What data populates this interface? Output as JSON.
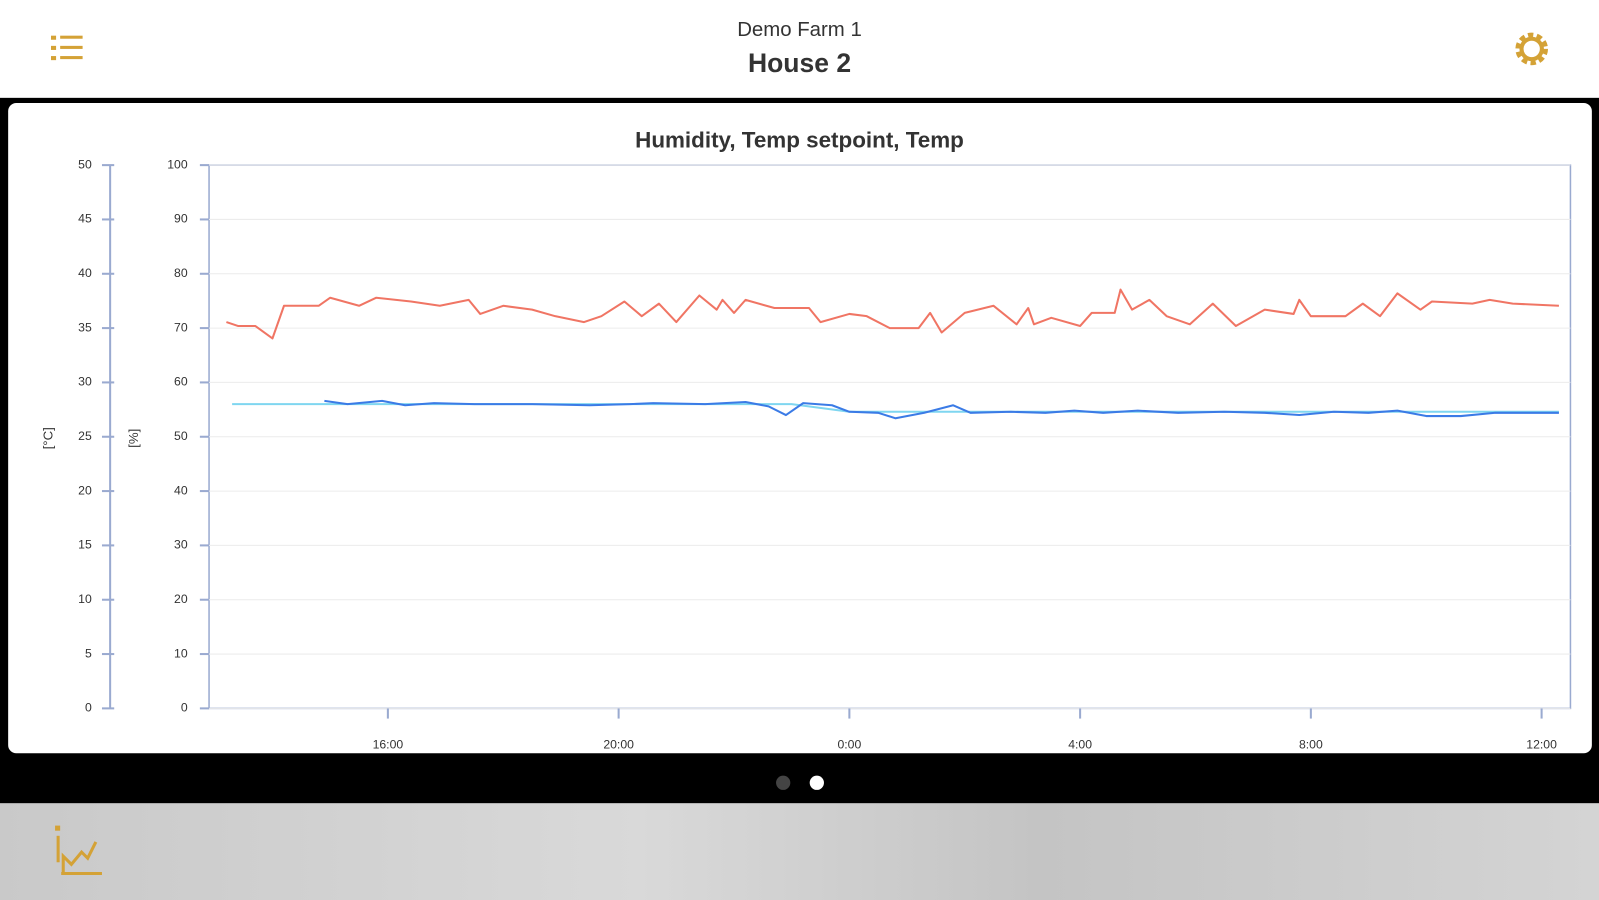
{
  "header": {
    "subtitle": "Demo Farm 1",
    "title": "House 2"
  },
  "chart_data": {
    "type": "line",
    "title": "Humidity, Temp setpoint, Temp",
    "ylabel": "[°C]",
    "y2label": "[%]",
    "xlim": [
      12.9,
      36.5
    ],
    "xticks": [
      {
        "value": 16,
        "label": "16:00"
      },
      {
        "value": 20,
        "label": "20:00"
      },
      {
        "value": 24,
        "label": "0:00"
      },
      {
        "value": 28,
        "label": "4:00"
      },
      {
        "value": 32,
        "label": "8:00"
      },
      {
        "value": 36,
        "label": "12:00"
      }
    ],
    "ylim": [
      0,
      50
    ],
    "yticks": [
      0,
      5,
      10,
      15,
      20,
      25,
      30,
      35,
      40,
      45,
      50
    ],
    "y2lim": [
      0,
      100
    ],
    "y2ticks": [
      0,
      10,
      20,
      30,
      40,
      50,
      60,
      70,
      80,
      90,
      100
    ],
    "grid": true,
    "series": [
      {
        "name": "Humidity",
        "color": "#f07564",
        "axis": "y2",
        "x": [
          13.2,
          13.4,
          13.7,
          14.0,
          14.2,
          14.8,
          15.0,
          15.5,
          15.8,
          16.4,
          16.9,
          17.4,
          17.6,
          18.0,
          18.5,
          18.9,
          19.4,
          19.7,
          20.1,
          20.4,
          20.7,
          21.0,
          21.4,
          21.7,
          21.8,
          22.0,
          22.2,
          22.7,
          23.3,
          23.5,
          24.0,
          24.3,
          24.7,
          25.2,
          25.4,
          25.6,
          26.0,
          26.5,
          26.9,
          27.1,
          27.2,
          27.5,
          28.0,
          28.2,
          28.6,
          28.7,
          28.9,
          29.2,
          29.5,
          29.9,
          30.3,
          30.7,
          31.2,
          31.7,
          31.8,
          32.0,
          32.6,
          32.9,
          33.2,
          33.5,
          33.9,
          34.1,
          34.8,
          35.1,
          35.5,
          36.3
        ],
        "values": [
          71.1,
          70.4,
          70.4,
          68.1,
          74.1,
          74.1,
          75.6,
          74.1,
          75.6,
          74.9,
          74.1,
          75.2,
          72.6,
          74.1,
          73.4,
          72.2,
          71.1,
          72.2,
          74.9,
          72.2,
          74.5,
          71.1,
          76.0,
          73.4,
          75.2,
          72.8,
          75.2,
          73.7,
          73.7,
          71.1,
          72.6,
          72.2,
          70.0,
          70.0,
          72.8,
          69.2,
          72.8,
          74.1,
          70.7,
          73.7,
          70.7,
          71.9,
          70.4,
          72.8,
          72.8,
          77.1,
          73.4,
          75.2,
          72.2,
          70.7,
          74.5,
          70.4,
          73.4,
          72.6,
          75.2,
          72.2,
          72.2,
          74.5,
          72.2,
          76.4,
          73.4,
          74.9,
          74.5,
          75.2,
          74.5,
          74.1
        ]
      },
      {
        "name": "Temp setpoint",
        "color": "#7fd6f0",
        "axis": "y",
        "x": [
          13.3,
          23.0,
          24.0,
          36.3
        ],
        "values": [
          28.0,
          28.0,
          27.3,
          27.3
        ]
      },
      {
        "name": "Temp",
        "color": "#3b7be6",
        "axis": "y",
        "x": [
          14.9,
          15.3,
          15.9,
          16.3,
          16.8,
          17.5,
          18.5,
          19.5,
          20.2,
          20.6,
          21.5,
          22.2,
          22.6,
          22.9,
          23.2,
          23.7,
          24.0,
          24.5,
          24.8,
          25.3,
          25.8,
          26.1,
          26.8,
          27.4,
          27.9,
          28.4,
          29.0,
          29.7,
          30.5,
          31.2,
          31.8,
          32.4,
          33.0,
          33.5,
          34.0,
          34.6,
          35.2,
          36.3
        ],
        "values": [
          28.3,
          28.0,
          28.3,
          27.9,
          28.1,
          28.0,
          28.0,
          27.9,
          28.0,
          28.1,
          28.0,
          28.2,
          27.8,
          27.0,
          28.1,
          27.9,
          27.3,
          27.2,
          26.7,
          27.2,
          27.9,
          27.2,
          27.3,
          27.2,
          27.4,
          27.2,
          27.4,
          27.2,
          27.3,
          27.2,
          27.0,
          27.3,
          27.2,
          27.4,
          26.9,
          26.9,
          27.2,
          27.2
        ]
      }
    ]
  }
}
